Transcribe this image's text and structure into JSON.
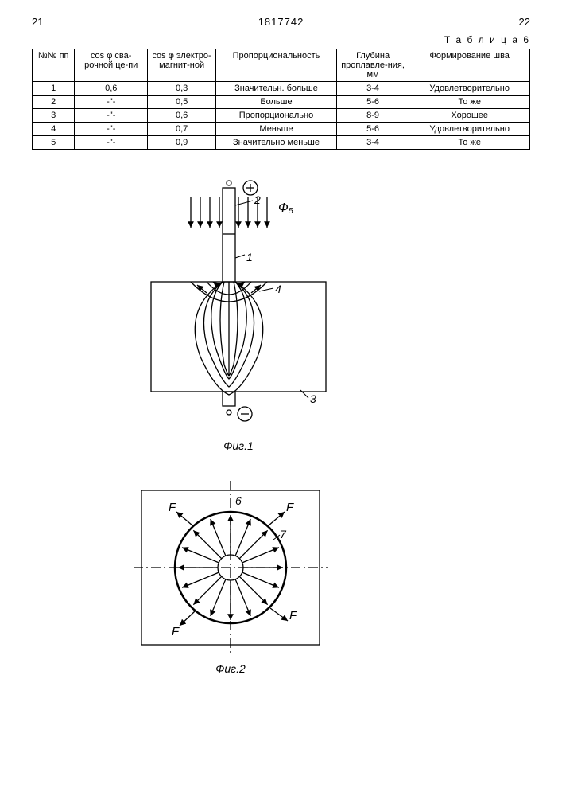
{
  "header": {
    "page_left": "21",
    "doc_number": "1817742",
    "page_right": "22"
  },
  "table": {
    "label": "Т а б л и ц а  6",
    "columns": {
      "np": "№№ пп",
      "cos_weld": "cos φ сва-рочной це-пи",
      "cos_em": "cos φ электро-магнит-ной",
      "prop": "Пропорциональность",
      "depth": "Глубина проплавле-ния, мм",
      "form": "Формирование шва"
    },
    "rows": [
      {
        "n": "1",
        "c1": "0,6",
        "c2": "0,3",
        "p": "Значительн. больше",
        "d": "3-4",
        "f": "Удовлетворительно"
      },
      {
        "n": "2",
        "c1": "-\"-",
        "c2": "0,5",
        "p": "Больше",
        "d": "5-6",
        "f": "То же"
      },
      {
        "n": "3",
        "c1": "-\"-",
        "c2": "0,6",
        "p": "Пропорционально",
        "d": "8-9",
        "f": "Хорошее"
      },
      {
        "n": "4",
        "c1": "-\"-",
        "c2": "0,7",
        "p": "Меньше",
        "d": "5-6",
        "f": "Удовлетворительно"
      },
      {
        "n": "5",
        "c1": "-\"-",
        "c2": "0,9",
        "p": "Значительно меньше",
        "d": "3-4",
        "f": "То же"
      }
    ]
  },
  "fig1": {
    "caption": "Фиг.1",
    "labels": {
      "flux": "Ф₅",
      "lbl1": "1",
      "lbl2": "2",
      "lbl3": "3",
      "lbl4": "4",
      "plus": "+",
      "minus": "−"
    }
  },
  "fig2": {
    "caption": "Фиг.2",
    "labels": {
      "lbl6": "6",
      "lbl7": "7",
      "F": "F"
    }
  },
  "style": {
    "stroke": "#000000",
    "stroke_width": 1.5,
    "font_family": "Arial",
    "label_fontsize": 14
  }
}
